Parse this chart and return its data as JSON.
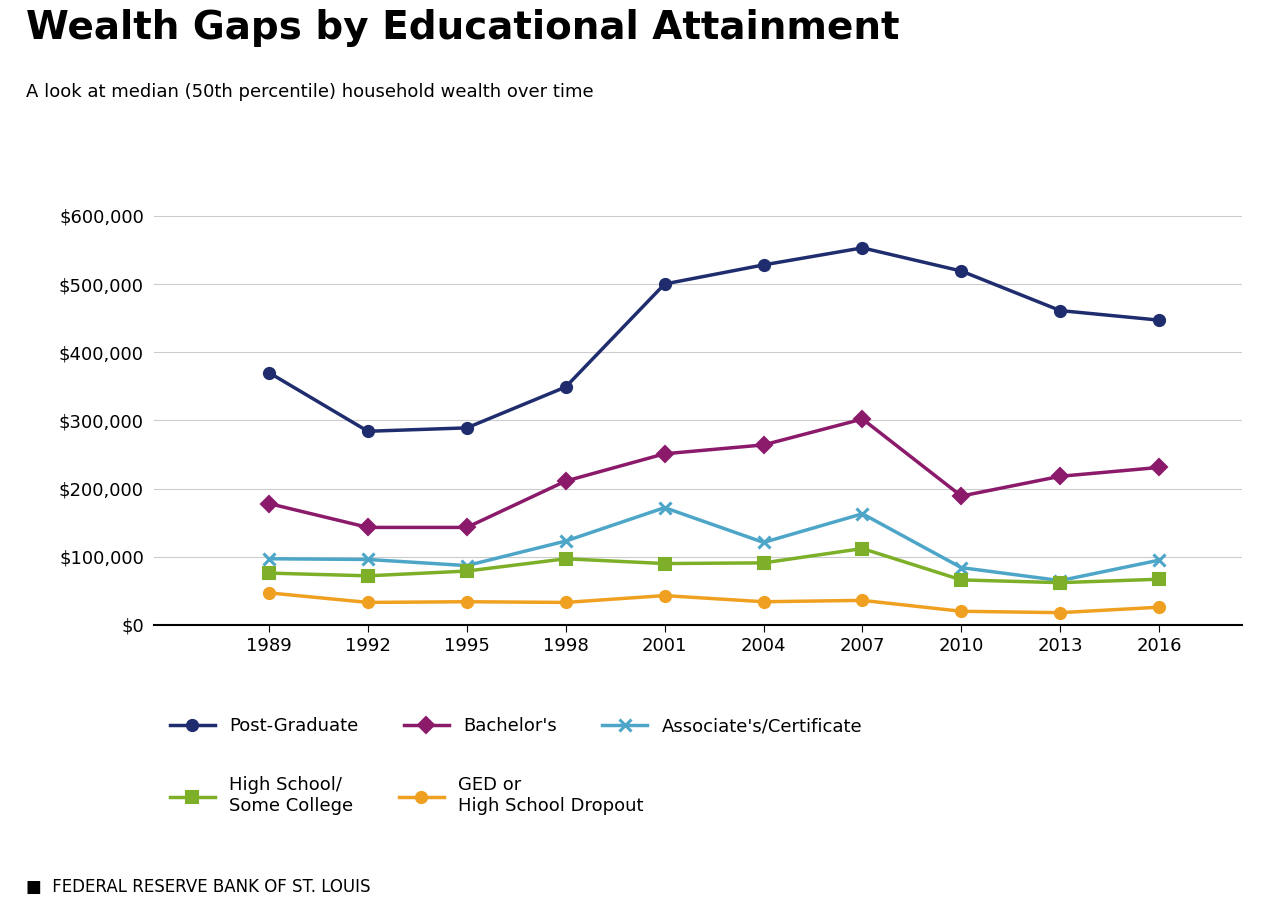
{
  "title": "Wealth Gaps by Educational Attainment",
  "subtitle": "A look at median (50th percentile) household wealth over time",
  "source": "FEDERAL RESERVE BANK OF ST. LOUIS",
  "years": [
    1989,
    1992,
    1995,
    1998,
    2001,
    2004,
    2007,
    2010,
    2013,
    2016
  ],
  "series": {
    "Post-Graduate": {
      "values": [
        370000,
        284000,
        289000,
        349000,
        500000,
        528000,
        553000,
        519000,
        461000,
        447000
      ],
      "color": "#1f2d6e",
      "marker": "o",
      "linewidth": 2.5,
      "markersize": 8
    },
    "Bachelor's": {
      "values": [
        178000,
        143000,
        143000,
        211000,
        251000,
        264000,
        302000,
        189000,
        218000,
        231000
      ],
      "color": "#8b1a6b",
      "marker": "D",
      "linewidth": 2.5,
      "markersize": 8
    },
    "Associate's/Certificate": {
      "values": [
        97000,
        96000,
        87000,
        123000,
        172000,
        121000,
        163000,
        84000,
        65000,
        95000
      ],
      "color": "#4da6c8",
      "marker": "x",
      "linewidth": 2.5,
      "markersize": 9
    },
    "High School/\nSome College": {
      "values": [
        76000,
        72000,
        79000,
        97000,
        90000,
        91000,
        112000,
        66000,
        62000,
        67000
      ],
      "color": "#7db028",
      "marker": "s",
      "linewidth": 2.5,
      "markersize": 8
    },
    "GED or\nHigh School Dropout": {
      "values": [
        47000,
        33000,
        34000,
        33000,
        43000,
        34000,
        36000,
        20000,
        18000,
        26000
      ],
      "color": "#f0a020",
      "marker": "o",
      "linewidth": 2.5,
      "markersize": 8
    }
  },
  "ylim": [
    0,
    620000
  ],
  "yticks": [
    0,
    100000,
    200000,
    300000,
    400000,
    500000,
    600000
  ],
  "ytick_labels": [
    "$0",
    "$100,000",
    "$200,000",
    "$300,000",
    "$400,000",
    "$500,000",
    "$600,000"
  ],
  "background_color": "#ffffff",
  "grid_color": "#cccccc",
  "title_fontsize": 28,
  "subtitle_fontsize": 13,
  "tick_fontsize": 13,
  "legend_fontsize": 13,
  "source_fontsize": 12
}
